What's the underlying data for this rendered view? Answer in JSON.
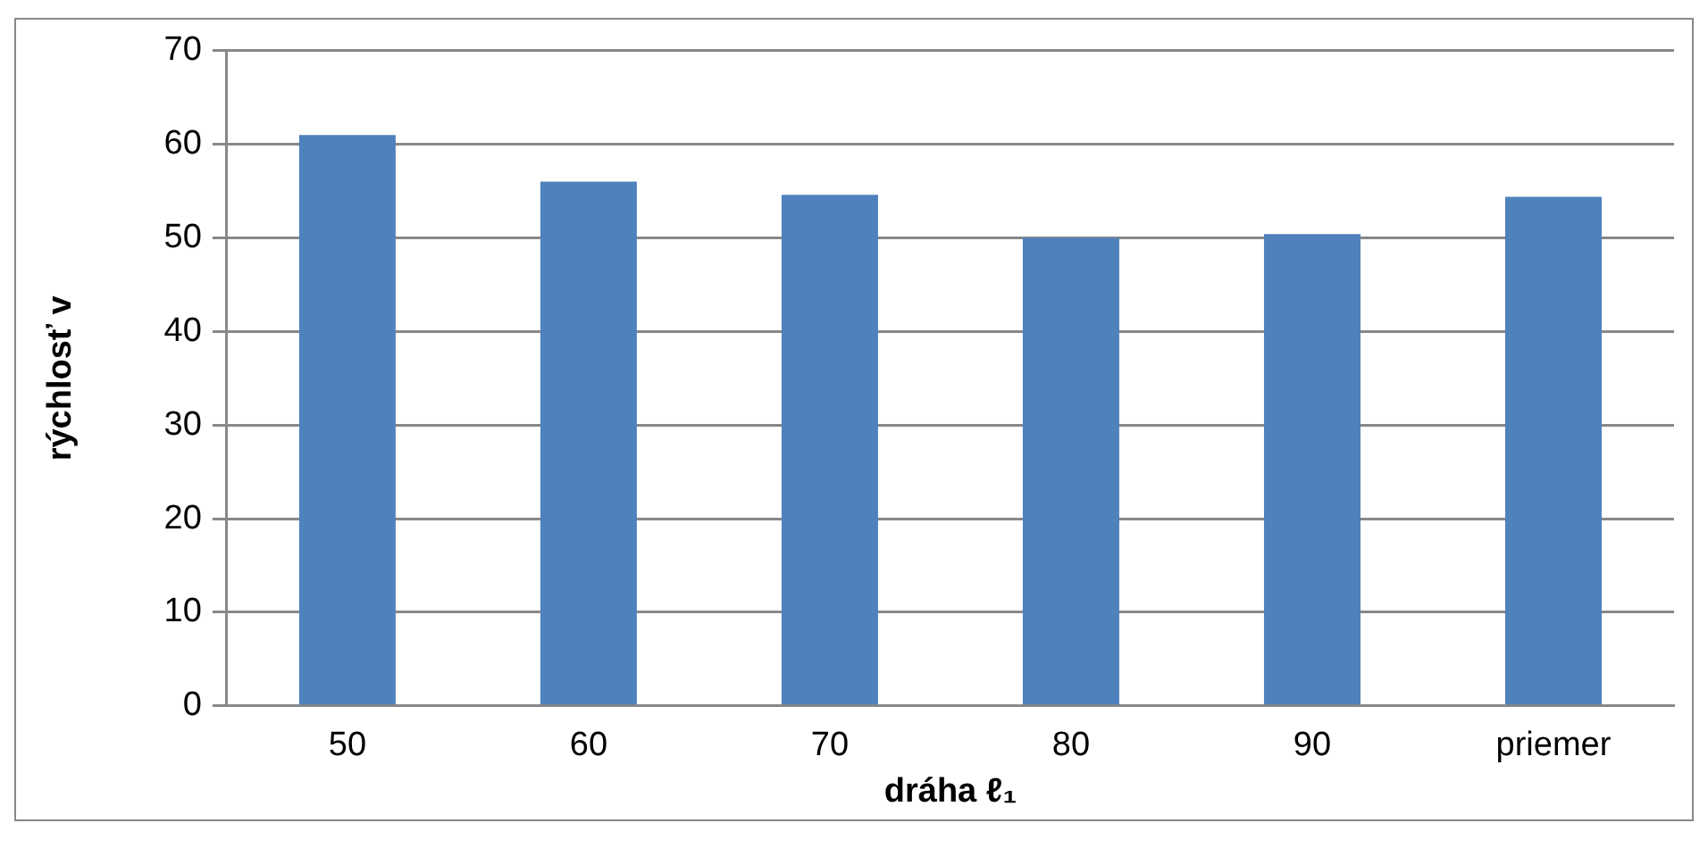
{
  "chart_data": {
    "type": "bar",
    "xlabel": "dráha ℓ₁",
    "ylabel": "rýchlosť v",
    "categories": [
      "50",
      "60",
      "70",
      "80",
      "90",
      "priemer"
    ],
    "values": [
      61,
      56,
      54.6,
      50,
      50.4,
      54.4
    ],
    "color": "#4f81bd",
    "ylim": [
      0,
      70
    ],
    "yticks": [
      0,
      10,
      20,
      30,
      40,
      50,
      60,
      70
    ],
    "grid": "y",
    "legend": false
  }
}
